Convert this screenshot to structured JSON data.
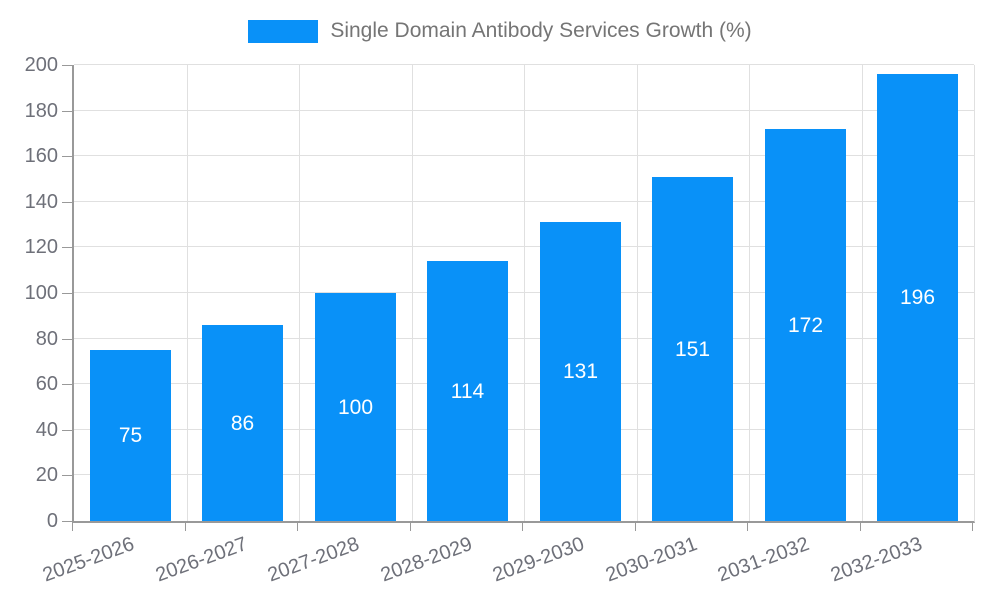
{
  "legend": {
    "label": "Single Domain Antibody Services Growth (%)"
  },
  "chart_data": {
    "type": "bar",
    "title": "Single Domain Antibody Services Growth (%)",
    "categories": [
      "2025-2026",
      "2026-2027",
      "2027-2028",
      "2028-2029",
      "2029-2030",
      "2030-2031",
      "2031-2032",
      "2032-2033"
    ],
    "values": [
      75,
      86,
      100,
      114,
      131,
      151,
      172,
      196
    ],
    "xlabel": "",
    "ylabel": "",
    "ylim": [
      0,
      200
    ],
    "y_ticks": [
      0,
      20,
      40,
      60,
      80,
      100,
      120,
      140,
      160,
      180,
      200
    ],
    "grid": "on",
    "legend_position": "top",
    "value_labels": "inside-center",
    "colors": {
      "bar": "#0991f8",
      "value_label": "#ffffff",
      "axis_text": "#6e7079",
      "legend_text": "#757575",
      "grid_line": "#e0e0e0",
      "axis_line": "#999999"
    }
  }
}
